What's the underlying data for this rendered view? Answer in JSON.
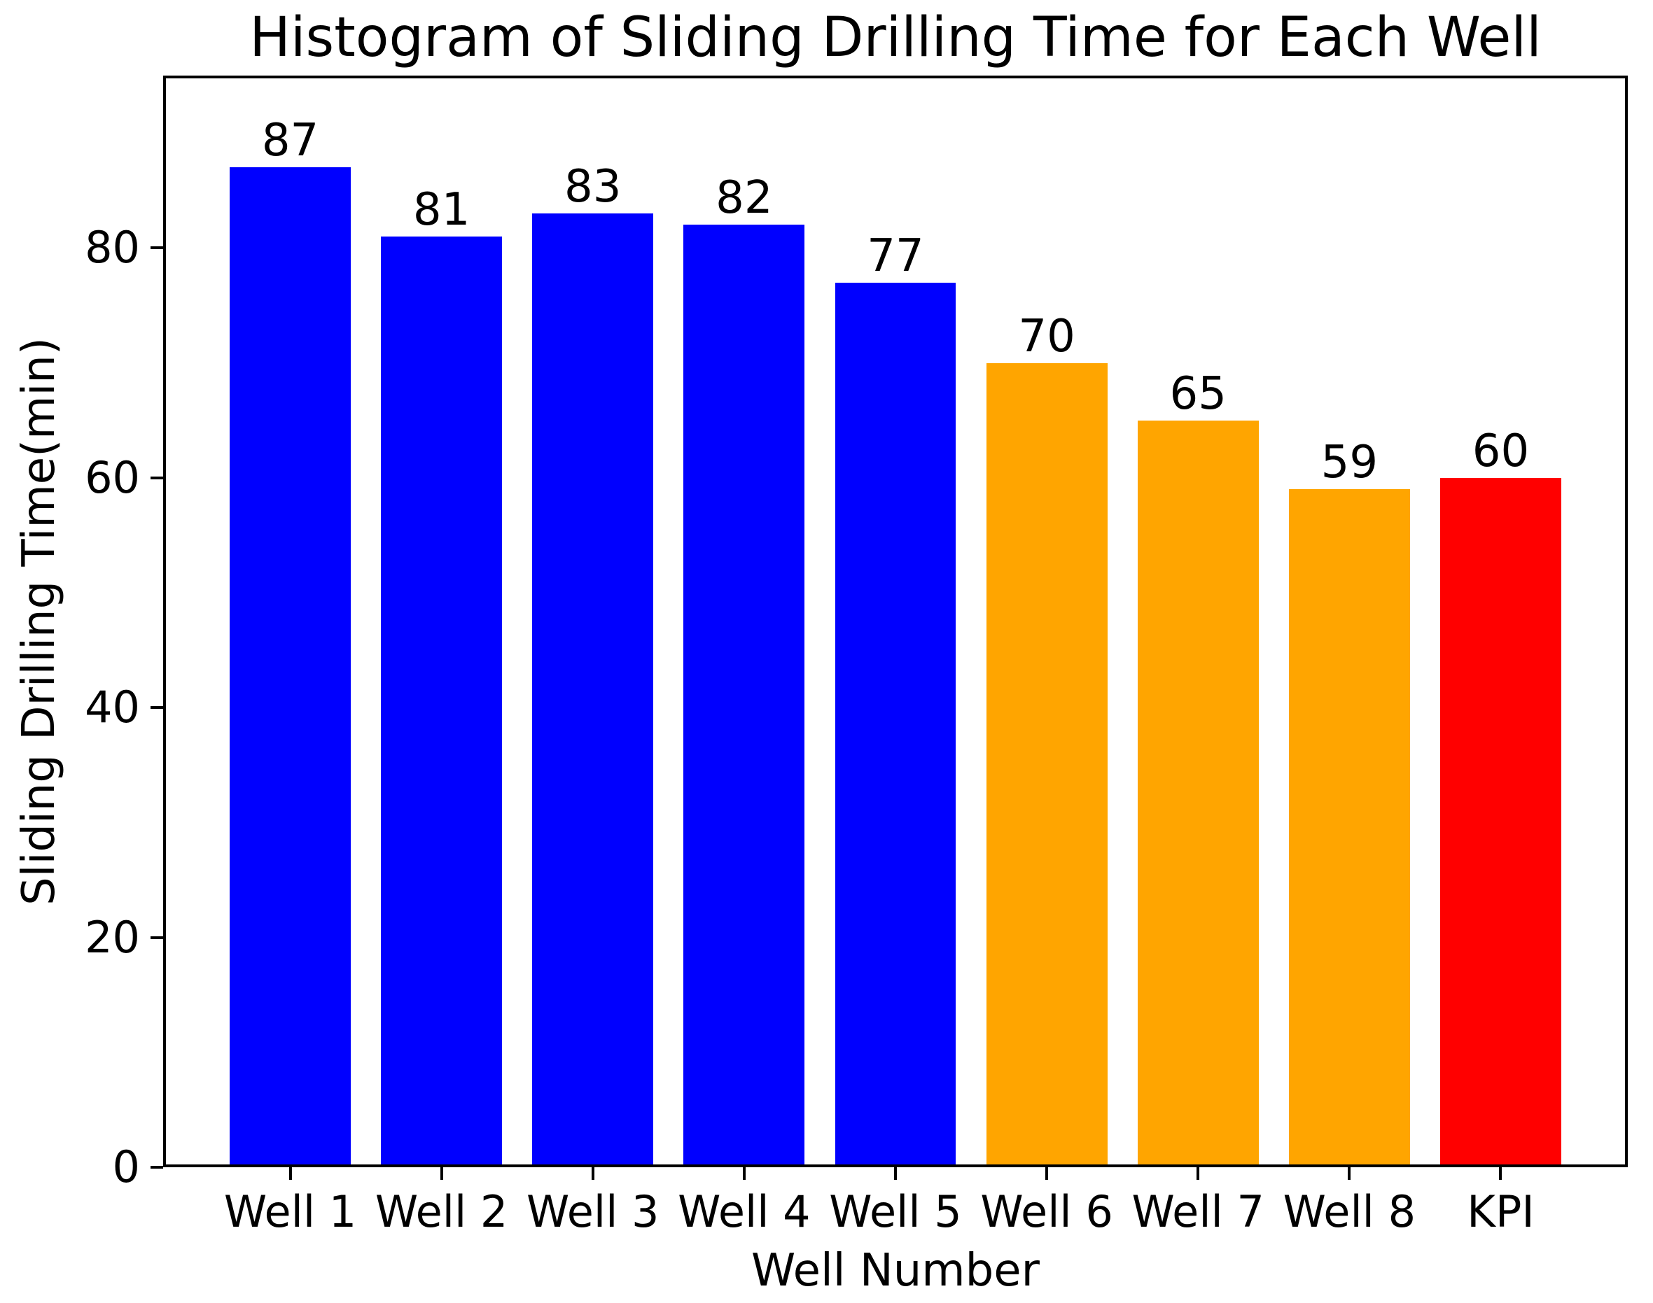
{
  "chart_data": {
    "type": "bar",
    "title": "Histogram of Sliding Drilling Time for Each Well",
    "xlabel": "Well Number",
    "ylabel": "Sliding Drilling Time(min)",
    "categories": [
      "Well 1",
      "Well 2",
      "Well 3",
      "Well 4",
      "Well 5",
      "Well 6",
      "Well 7",
      "Well 8",
      "KPI"
    ],
    "values": [
      87,
      81,
      83,
      82,
      77,
      70,
      65,
      59,
      60
    ],
    "value_labels": [
      "87",
      "81",
      "83",
      "82",
      "77",
      "70",
      "65",
      "59",
      "60"
    ],
    "bar_colors": [
      "#0000ff",
      "#0000ff",
      "#0000ff",
      "#0000ff",
      "#0000ff",
      "#ffa500",
      "#ffa500",
      "#ffa500",
      "#ff0000"
    ],
    "ylim": [
      0,
      95
    ],
    "yticks": [
      0,
      20,
      40,
      60,
      80
    ],
    "bar_width_fraction": 0.8,
    "grid": false,
    "legend": null,
    "colors": {
      "well_blue": "#0000ff",
      "well_orange": "#ffa500",
      "kpi_red": "#ff0000",
      "spine_black": "#000000",
      "background": "#ffffff"
    }
  }
}
